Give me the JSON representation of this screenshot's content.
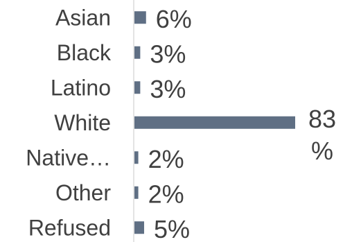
{
  "chart_data": {
    "type": "bar",
    "orientation": "horizontal",
    "categories": [
      "Asian",
      "Black",
      "Latino",
      "White",
      "Native…",
      "Other",
      "Refused"
    ],
    "values": [
      6,
      3,
      3,
      83,
      2,
      2,
      5
    ],
    "value_labels": [
      "6%",
      "3%",
      "3%",
      "83\n%",
      "2%",
      "2%",
      "5%"
    ],
    "value_unit": "%",
    "xlim": [
      0,
      83
    ],
    "title": "",
    "xlabel": "",
    "ylabel": "",
    "grid": false,
    "legend": "none",
    "colors": {
      "bar": "#5f6f84",
      "axis": "#c8c8c8",
      "text": "#404040"
    }
  }
}
